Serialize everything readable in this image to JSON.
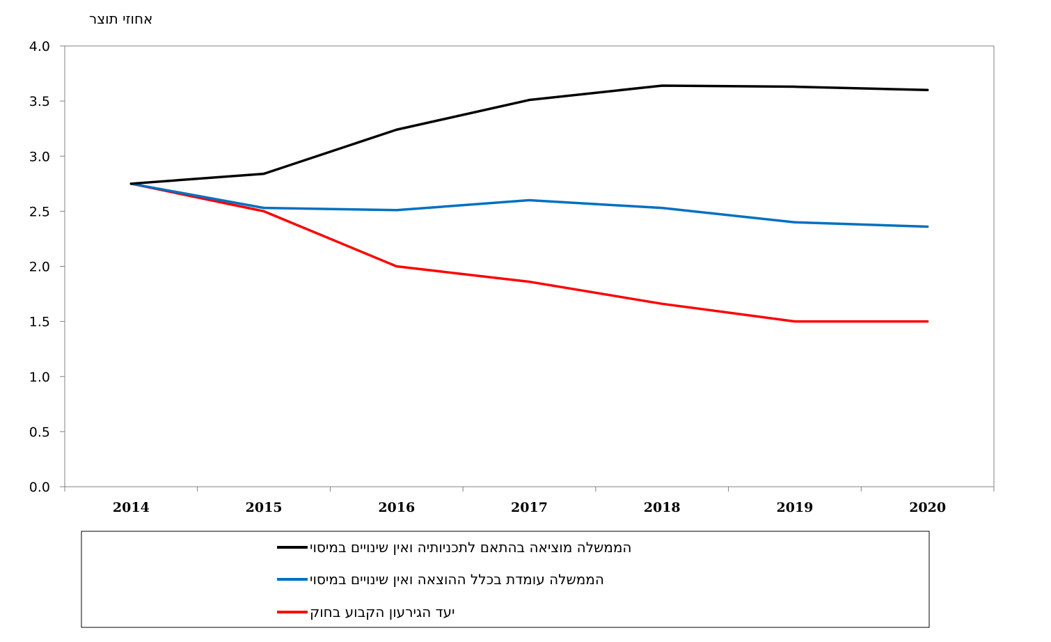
{
  "chart_data": {
    "type": "line",
    "ylabel": "אחוזי תוצר",
    "xlabel": "",
    "title": "",
    "ylim": [
      0,
      4
    ],
    "yticks": [
      "0.0",
      "0.5",
      "1.0",
      "1.5",
      "2.0",
      "2.5",
      "3.0",
      "3.5",
      "4.0"
    ],
    "categories": [
      "2014",
      "2015",
      "2016",
      "2017",
      "2018",
      "2019",
      "2020"
    ],
    "grid": false,
    "legend_position": "bottom",
    "series": [
      {
        "name": "הממשלה מוציאה בהתאם לתכניותיה ואין שינויים במיסוי",
        "color": "#000000",
        "values": [
          2.75,
          2.84,
          3.24,
          3.51,
          3.64,
          3.63,
          3.6
        ]
      },
      {
        "name": "הממשלה עומדת בכלל ההוצאה ואין שינויים במיסוי",
        "color": "#0070c0",
        "values": [
          2.75,
          2.53,
          2.51,
          2.6,
          2.53,
          2.4,
          2.36
        ]
      },
      {
        "name": "יעד הגירעון הקבוע בחוק",
        "color": "#ff0000",
        "values": [
          2.75,
          2.5,
          2.0,
          1.86,
          1.66,
          1.5,
          1.5
        ]
      }
    ]
  }
}
